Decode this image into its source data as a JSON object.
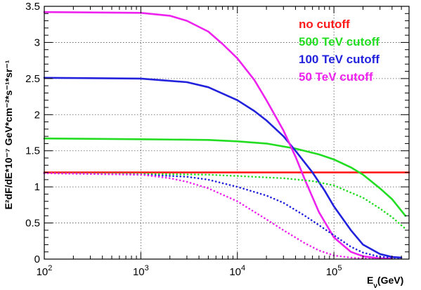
{
  "chart_data": {
    "type": "line",
    "title": "",
    "xlabel": "Eν(GeV)",
    "xlabel_main": "E",
    "xlabel_sub": "ν",
    "xlabel_unit": "(GeV)",
    "ylabel": "E²dF/dE*10⁻⁷ GeV*cm⁻²*s⁻¹*sr⁻¹",
    "xscale": "log",
    "xlim": [
      100,
      600000
    ],
    "ylim": [
      0,
      3.5
    ],
    "grid": true,
    "legend_position": "top-right",
    "x_ticks": [
      {
        "value": 100,
        "base": "10",
        "exp": "2"
      },
      {
        "value": 1000,
        "base": "10",
        "exp": "3"
      },
      {
        "value": 10000,
        "base": "10",
        "exp": "4"
      },
      {
        "value": 100000,
        "base": "10",
        "exp": "5"
      }
    ],
    "y_ticks": [
      {
        "value": 0,
        "label": "0"
      },
      {
        "value": 0.5,
        "label": "0.5"
      },
      {
        "value": 1,
        "label": "1"
      },
      {
        "value": 1.5,
        "label": "1.5"
      },
      {
        "value": 2,
        "label": "2"
      },
      {
        "value": 2.5,
        "label": "2.5"
      },
      {
        "value": 3,
        "label": "3"
      },
      {
        "value": 3.5,
        "label": "3.5"
      }
    ],
    "series": [
      {
        "name": "no cutoff",
        "color": "#ff1a1a",
        "style": "solid",
        "x": [
          100,
          1000,
          10000,
          100000,
          600000
        ],
        "y": [
          1.2,
          1.2,
          1.2,
          1.2,
          1.2
        ]
      },
      {
        "name": "500 TeV cutoff",
        "color": "#22dd22",
        "style": "solid",
        "x": [
          100,
          1000,
          5000,
          10000,
          20000,
          40000,
          70000,
          100000,
          150000,
          200000,
          300000,
          400000,
          550000
        ],
        "y": [
          1.67,
          1.66,
          1.65,
          1.63,
          1.6,
          1.53,
          1.45,
          1.38,
          1.27,
          1.17,
          0.98,
          0.83,
          0.6
        ]
      },
      {
        "name": "100 TeV cutoff",
        "color": "#2222dd",
        "style": "solid",
        "x": [
          100,
          1000,
          3000,
          5000,
          10000,
          15000,
          20000,
          30000,
          40000,
          60000,
          80000,
          100000,
          150000,
          200000,
          300000,
          400000,
          500000
        ],
        "y": [
          2.51,
          2.5,
          2.45,
          2.38,
          2.2,
          2.05,
          1.92,
          1.7,
          1.5,
          1.2,
          0.95,
          0.73,
          0.4,
          0.2,
          0.07,
          0.03,
          0.02
        ]
      },
      {
        "name": "50 TeV cutoff",
        "color": "#ee22ee",
        "style": "solid",
        "x": [
          100,
          1000,
          2000,
          3000,
          5000,
          7000,
          10000,
          15000,
          20000,
          30000,
          40000,
          50000,
          70000,
          100000,
          150000,
          200000,
          300000,
          400000
        ],
        "y": [
          3.42,
          3.41,
          3.37,
          3.3,
          3.15,
          2.98,
          2.78,
          2.48,
          2.2,
          1.78,
          1.42,
          1.1,
          0.65,
          0.3,
          0.1,
          0.04,
          0.01,
          0.01
        ]
      },
      {
        "color": "#22dd22",
        "style": "dotted",
        "x": [
          100,
          1000,
          5000,
          10000,
          30000,
          60000,
          100000,
          200000,
          300000,
          400000,
          550000
        ],
        "y": [
          1.19,
          1.18,
          1.17,
          1.15,
          1.12,
          1.08,
          1.02,
          0.85,
          0.7,
          0.58,
          0.42
        ]
      },
      {
        "color": "#2222dd",
        "style": "dotted",
        "x": [
          100,
          1000,
          3000,
          5000,
          10000,
          20000,
          30000,
          50000,
          70000,
          100000,
          150000,
          200000,
          300000,
          400000,
          500000
        ],
        "y": [
          1.19,
          1.17,
          1.14,
          1.1,
          1.0,
          0.88,
          0.78,
          0.6,
          0.47,
          0.33,
          0.17,
          0.09,
          0.03,
          0.02,
          0.01
        ]
      },
      {
        "color": "#ee22ee",
        "style": "dotted",
        "x": [
          100,
          1000,
          2000,
          3000,
          5000,
          10000,
          20000,
          30000,
          50000,
          70000,
          100000,
          150000,
          200000,
          300000
        ],
        "y": [
          1.19,
          1.17,
          1.12,
          1.07,
          0.98,
          0.8,
          0.55,
          0.4,
          0.22,
          0.12,
          0.05,
          0.02,
          0.01,
          0.01
        ]
      }
    ]
  }
}
